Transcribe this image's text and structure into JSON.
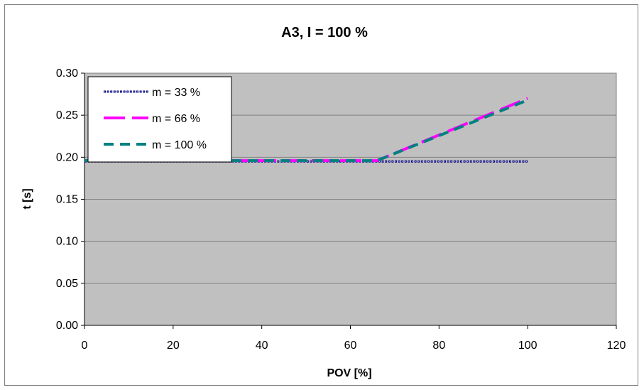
{
  "chart_data": {
    "type": "line",
    "title": "A3, I = 100 %",
    "xlabel": "POV [%]",
    "ylabel": "t [s]",
    "xlim": [
      0,
      120
    ],
    "ylim": [
      0,
      0.3
    ],
    "x_ticks": [
      "0",
      "20",
      "40",
      "60",
      "80",
      "100",
      "120"
    ],
    "y_ticks": [
      "0.00",
      "0.05",
      "0.10",
      "0.15",
      "0.20",
      "0.25",
      "0.30"
    ],
    "grid": "horizontal",
    "legend_position": "top-left",
    "plot_background": "#c0c0c0",
    "series": [
      {
        "name": "m = 33 %",
        "color": "#000080",
        "style": "dotted-markers",
        "x": [
          0,
          33,
          66,
          100
        ],
        "y": [
          0.195,
          0.195,
          0.195,
          0.195
        ]
      },
      {
        "name": "m = 66 %",
        "color": "#ff00ff",
        "style": "long-dash",
        "x": [
          0,
          33,
          66,
          100
        ],
        "y": [
          0.196,
          0.196,
          0.196,
          0.27
        ]
      },
      {
        "name": "m = 100 %",
        "color": "#008080",
        "style": "dash",
        "x": [
          0,
          33,
          66,
          100
        ],
        "y": [
          0.196,
          0.196,
          0.196,
          0.268
        ]
      }
    ]
  }
}
